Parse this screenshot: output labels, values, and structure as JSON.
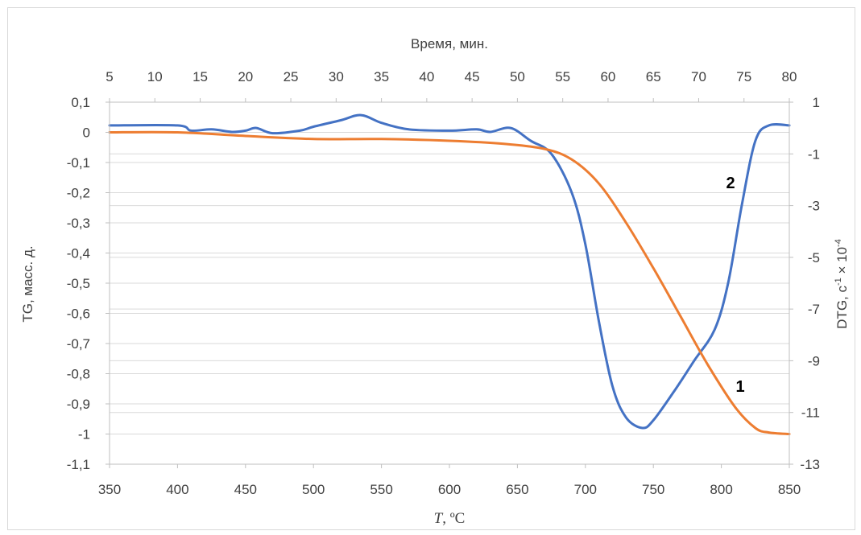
{
  "chart_data": {
    "type": "line",
    "top_axis": {
      "title": "Время, мин.",
      "ticks": [
        "5",
        "10",
        "15",
        "20",
        "25",
        "30",
        "35",
        "40",
        "45",
        "50",
        "55",
        "60",
        "65",
        "70",
        "75",
        "80"
      ]
    },
    "bottom_axis": {
      "title_italic": "T",
      "title_rest": ", ºC",
      "ticks": [
        "350",
        "400",
        "450",
        "500",
        "550",
        "600",
        "650",
        "700",
        "750",
        "800",
        "850"
      ],
      "range": [
        350,
        850
      ]
    },
    "left_axis": {
      "title": "TG, масс. д.",
      "ticks": [
        "0,1",
        "0",
        "-0,1",
        "-0,2",
        "-0,3",
        "-0,4",
        "-0,5",
        "-0,6",
        "-0,7",
        "-0,8",
        "-0,9",
        "-1",
        "-1,1"
      ],
      "range": [
        -1.1,
        0.1
      ]
    },
    "right_axis": {
      "title_main": "DTG, c",
      "title_sup1": "-1",
      "title_mid": " × 10",
      "title_sup2": "-4",
      "ticks": [
        "1",
        "-1",
        "-3",
        "-5",
        "-7",
        "-9",
        "-11",
        "-13"
      ],
      "range": [
        -13,
        1
      ]
    },
    "grid": "horizontal",
    "series": [
      {
        "label": "1",
        "axis": "left",
        "color": "#ED7D31",
        "x": [
          350,
          400,
          450,
          500,
          550,
          600,
          640,
          670,
          690,
          710,
          730,
          750,
          770,
          790,
          810,
          825,
          835,
          850
        ],
        "y": [
          0.0,
          0.0,
          -0.012,
          -0.022,
          -0.022,
          -0.028,
          -0.038,
          -0.055,
          -0.09,
          -0.17,
          -0.3,
          -0.45,
          -0.61,
          -0.77,
          -0.91,
          -0.98,
          -0.995,
          -1.0
        ]
      },
      {
        "label": "2",
        "axis": "right",
        "color": "#4472C4",
        "x": [
          350,
          400,
          410,
          425,
          440,
          450,
          458,
          470,
          490,
          500,
          520,
          535,
          550,
          570,
          600,
          620,
          630,
          645,
          660,
          675,
          690,
          700,
          710,
          720,
          730,
          742,
          750,
          765,
          780,
          795,
          805,
          815,
          825,
          835,
          850
        ],
        "y": [
          0.1,
          0.1,
          -0.1,
          -0.05,
          -0.15,
          -0.1,
          0.0,
          -0.2,
          -0.1,
          0.05,
          0.3,
          0.5,
          0.2,
          -0.05,
          -0.1,
          -0.05,
          -0.15,
          0.0,
          -0.5,
          -1.0,
          -2.5,
          -4.5,
          -7.5,
          -10.0,
          -11.2,
          -11.6,
          -11.3,
          -10.2,
          -9.0,
          -7.8,
          -6.0,
          -3.0,
          -0.5,
          0.1,
          0.1
        ]
      }
    ]
  }
}
